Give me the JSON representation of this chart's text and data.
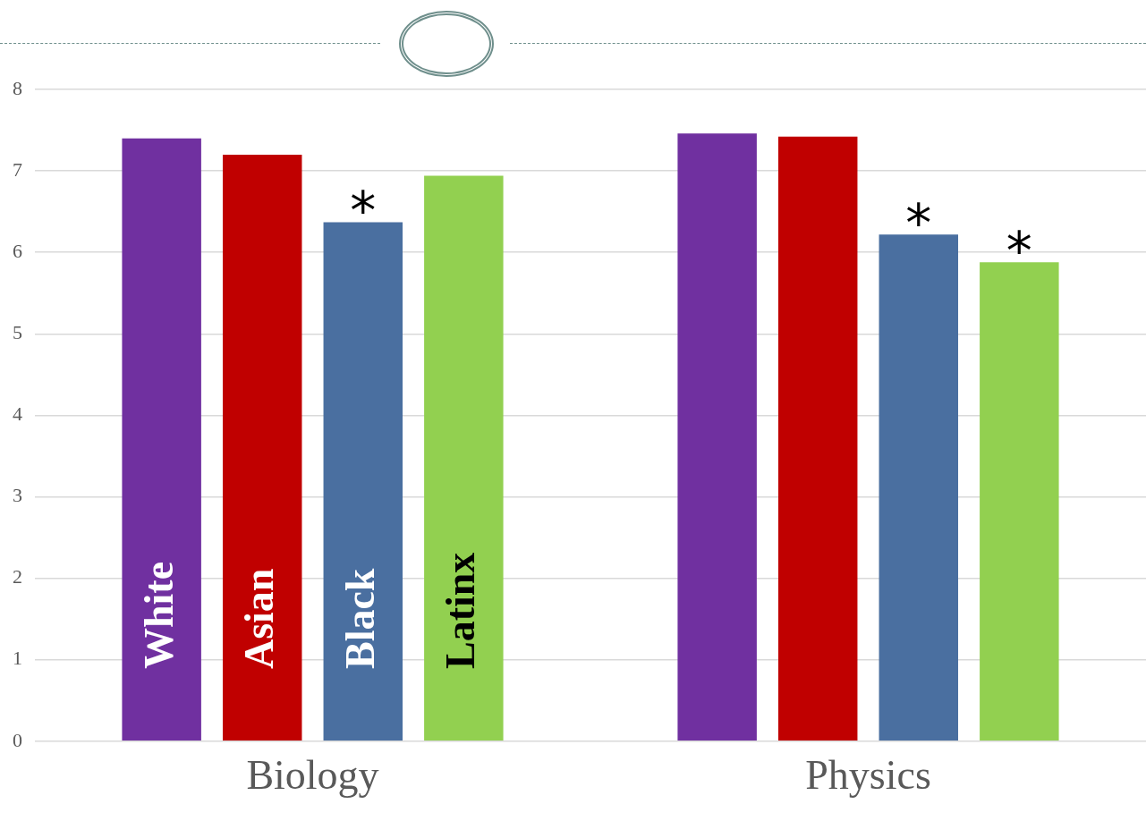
{
  "chart_data": {
    "type": "bar",
    "categories": [
      "Biology",
      "Physics"
    ],
    "series": [
      {
        "name": "White",
        "color": "#7030a0",
        "values": [
          7.4,
          7.46
        ]
      },
      {
        "name": "Asian",
        "color": "#c00000",
        "values": [
          7.2,
          7.42
        ]
      },
      {
        "name": "Black",
        "color": "#4a6fa0",
        "values": [
          6.37,
          6.22
        ],
        "value_labels": [
          "*",
          "*"
        ]
      },
      {
        "name": "Latinx",
        "color": "#92d050",
        "values": [
          6.94,
          5.88
        ],
        "value_labels": [
          null,
          "*"
        ]
      }
    ],
    "ylim": [
      0,
      8
    ],
    "yticks": [
      0,
      1,
      2,
      3,
      4,
      5,
      6,
      7,
      8
    ],
    "grid": "y",
    "legend": false
  }
}
